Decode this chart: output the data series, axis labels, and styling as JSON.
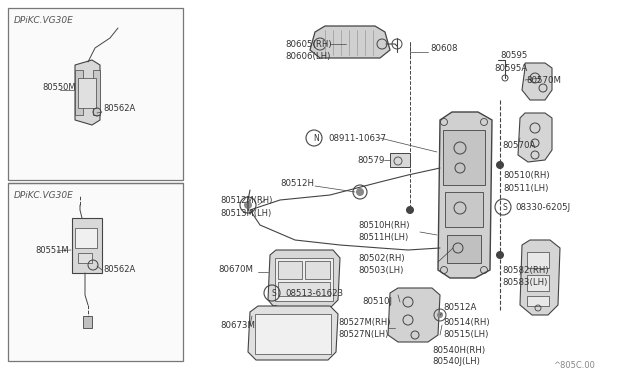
{
  "bg_color": "#ffffff",
  "fig_width": 6.4,
  "fig_height": 3.72,
  "dpi": 100,
  "watermark": "^805C.00",
  "box1_label": "DPiKC.VG30E",
  "box2_label": "DPiKC.VG30E",
  "lc": "#444444",
  "tc": "#333333",
  "fc": "#e8e8e8"
}
